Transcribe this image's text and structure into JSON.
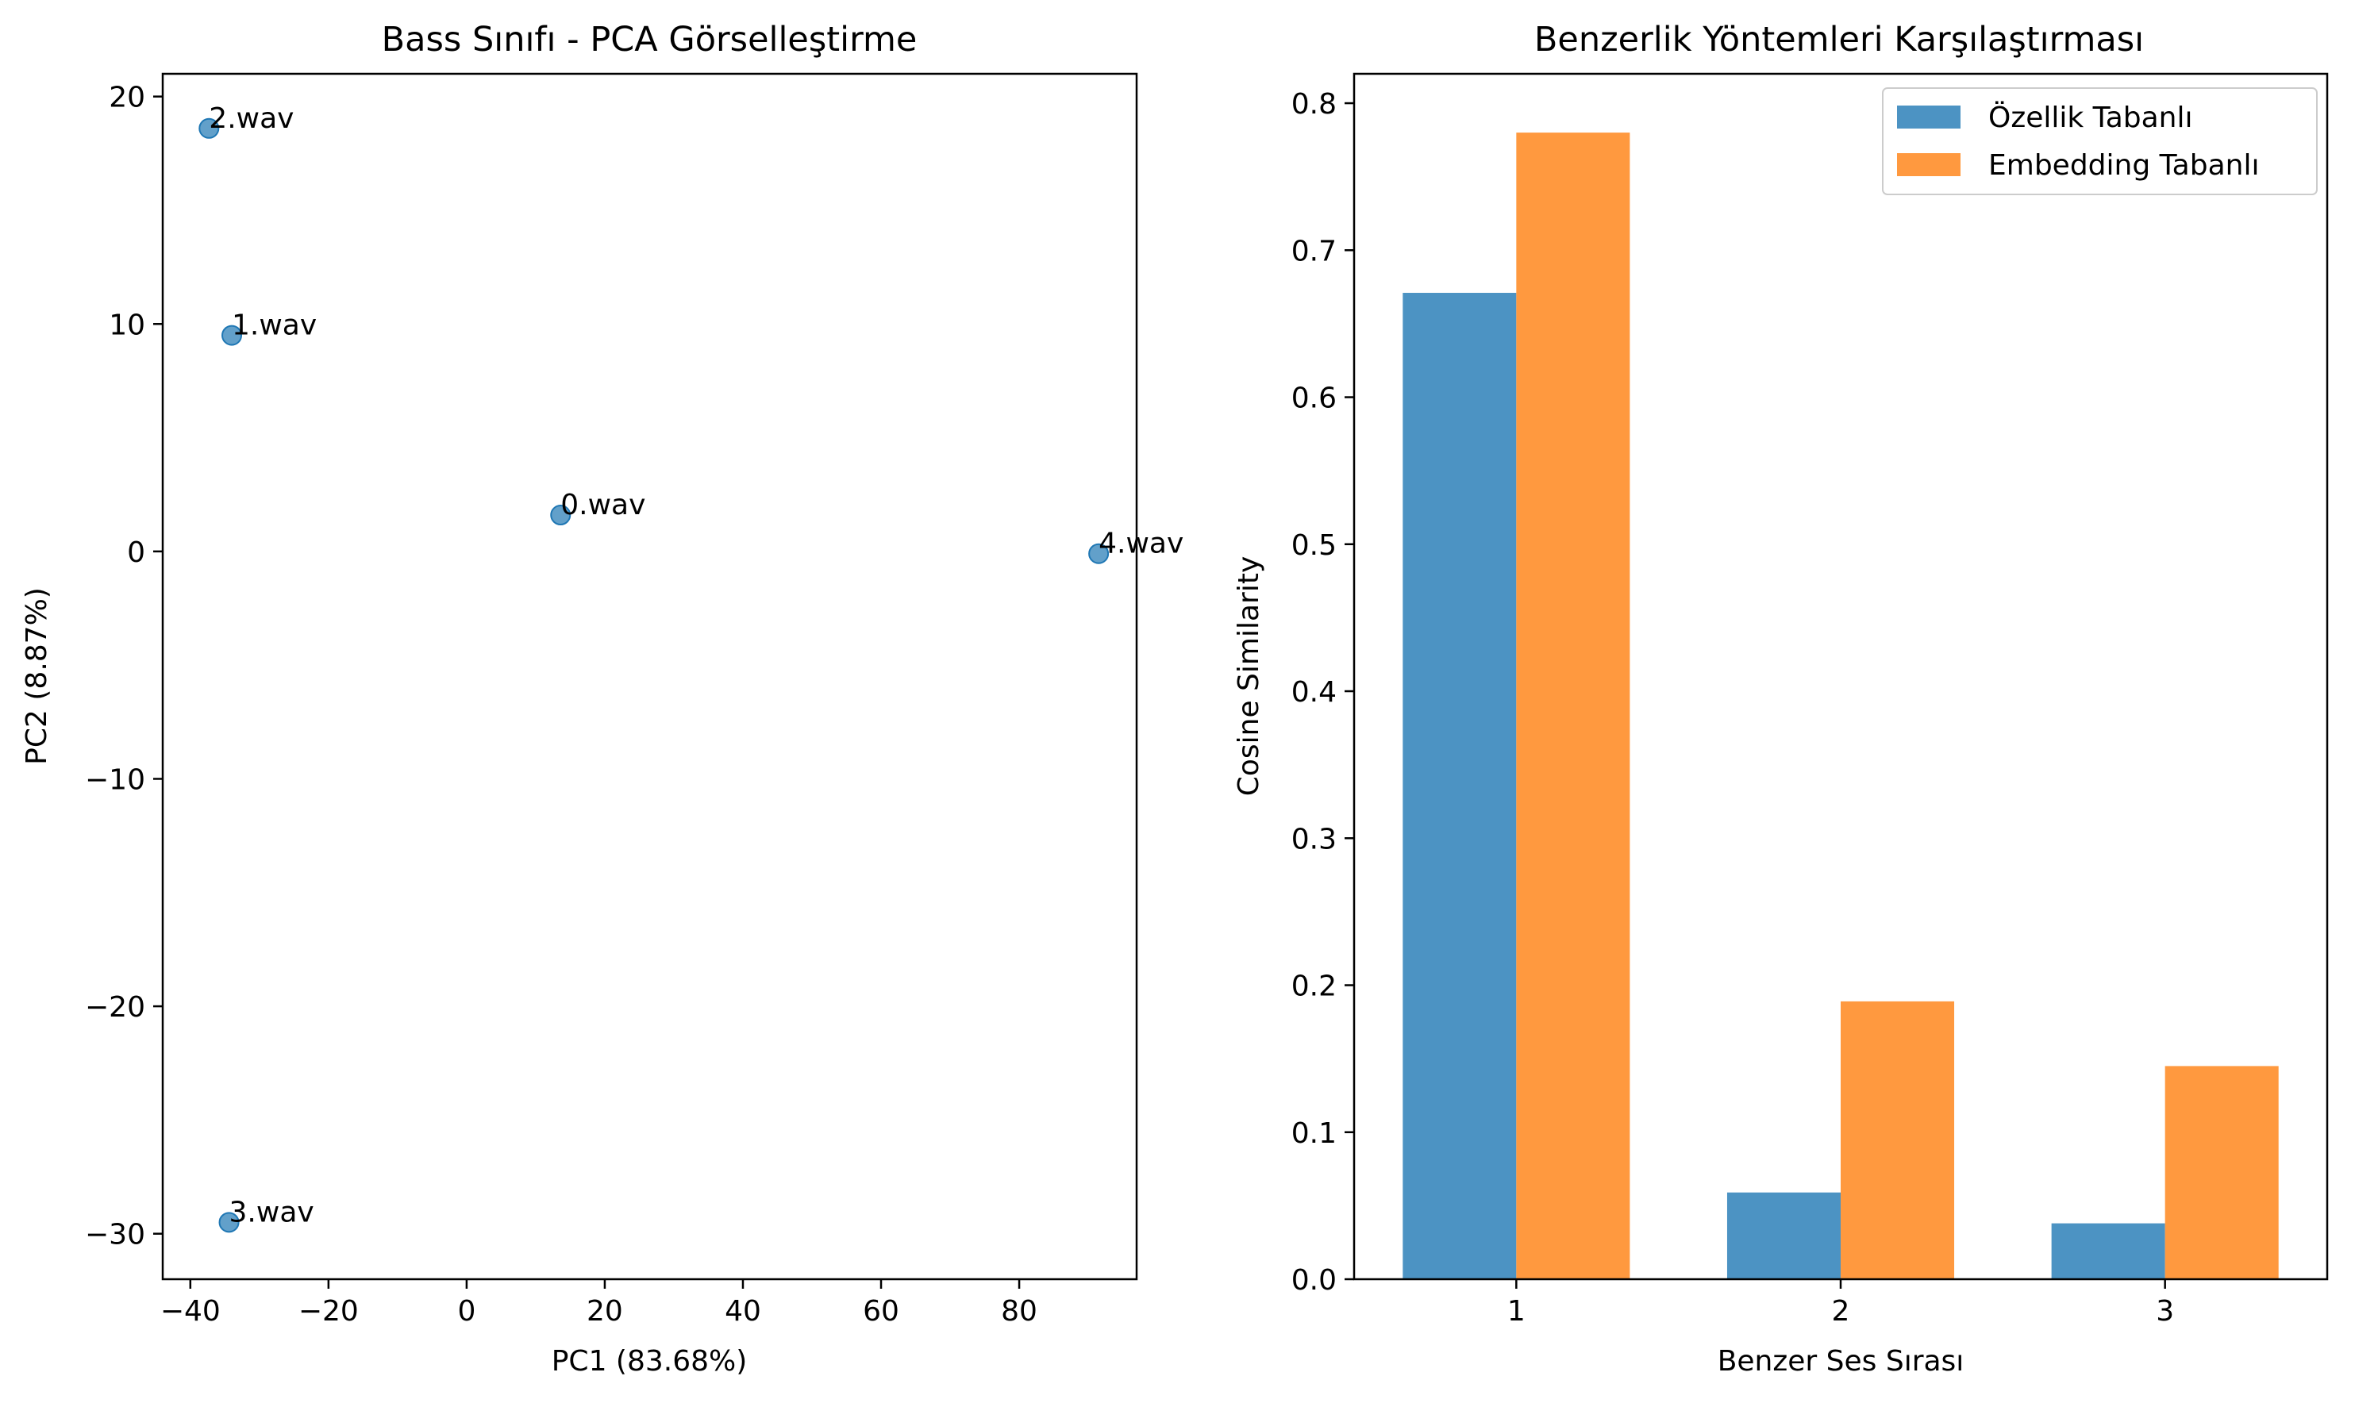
{
  "chart_data": [
    {
      "type": "scatter",
      "title": "Bass Sınıfı - PCA Görselleştirme",
      "xlabel": "PC1 (83.68%)",
      "ylabel": "PC2 (8.87%)",
      "xlim": [
        -44,
        97
      ],
      "ylim": [
        -32,
        21
      ],
      "xticks": [
        -40,
        -20,
        0,
        20,
        40,
        60,
        80
      ],
      "yticks": [
        -30,
        -20,
        -10,
        0,
        10,
        20
      ],
      "xtick_labels": [
        "−40",
        "−20",
        "0",
        "20",
        "40",
        "60",
        "80"
      ],
      "ytick_labels": [
        "−30",
        "−20",
        "−10",
        "0",
        "10",
        "20"
      ],
      "color": "#1f77b4",
      "points": [
        {
          "label": "2.wav",
          "x": -37.3,
          "y": 18.6
        },
        {
          "label": "1.wav",
          "x": -34.0,
          "y": 9.5
        },
        {
          "label": "0.wav",
          "x": 13.6,
          "y": 1.6
        },
        {
          "label": "4.wav",
          "x": 91.5,
          "y": -0.1
        },
        {
          "label": "3.wav",
          "x": -34.4,
          "y": -29.5
        }
      ],
      "grid": false
    },
    {
      "type": "bar",
      "title": "Benzerlik Yöntemleri Karşılaştırması",
      "xlabel": "Benzer Ses Sırası",
      "ylabel": "Cosine Similarity",
      "categories": [
        "1",
        "2",
        "3"
      ],
      "ylim": [
        0,
        0.82
      ],
      "yticks": [
        0.0,
        0.1,
        0.2,
        0.3,
        0.4,
        0.5,
        0.6,
        0.7,
        0.8
      ],
      "ytick_labels": [
        "0.0",
        "0.1",
        "0.2",
        "0.3",
        "0.4",
        "0.5",
        "0.6",
        "0.7",
        "0.8"
      ],
      "series": [
        {
          "name": "Özellik Tabanlı",
          "color": "#4c93c3",
          "values": [
            0.671,
            0.059,
            0.038
          ]
        },
        {
          "name": "Embedding Tabanlı",
          "color": "#ff993f",
          "values": [
            0.78,
            0.189,
            0.145
          ]
        }
      ],
      "legend": "top-right",
      "grid": false
    }
  ]
}
